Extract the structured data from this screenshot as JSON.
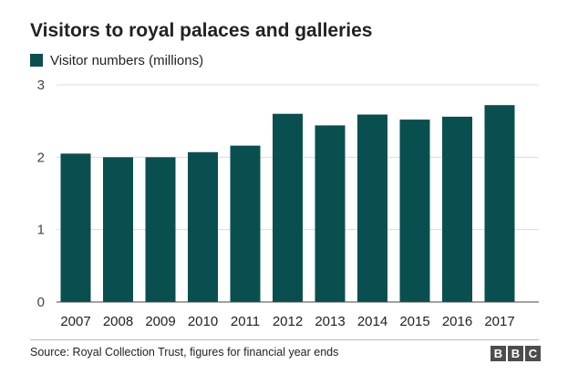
{
  "chart_data": {
    "type": "bar",
    "title": "Visitors to royal palaces and galleries",
    "series": [
      {
        "name": "Visitor numbers (millions)",
        "color": "#0a4f4f",
        "values": [
          2.05,
          2.0,
          2.0,
          2.07,
          2.16,
          2.6,
          2.44,
          2.59,
          2.52,
          2.56,
          2.72
        ]
      }
    ],
    "categories": [
      "2007",
      "2008",
      "2009",
      "2010",
      "2011",
      "2012",
      "2013",
      "2014",
      "2015",
      "2016",
      "2017"
    ],
    "y_ticks": [
      "0",
      "1",
      "2",
      "3"
    ],
    "ylim": [
      0,
      3
    ],
    "xlabel": "",
    "ylabel": "",
    "grid": true
  },
  "footer": {
    "source": "Source: Royal Collection Trust, figures for financial year ends",
    "logo_letters": [
      "B",
      "B",
      "C"
    ]
  }
}
